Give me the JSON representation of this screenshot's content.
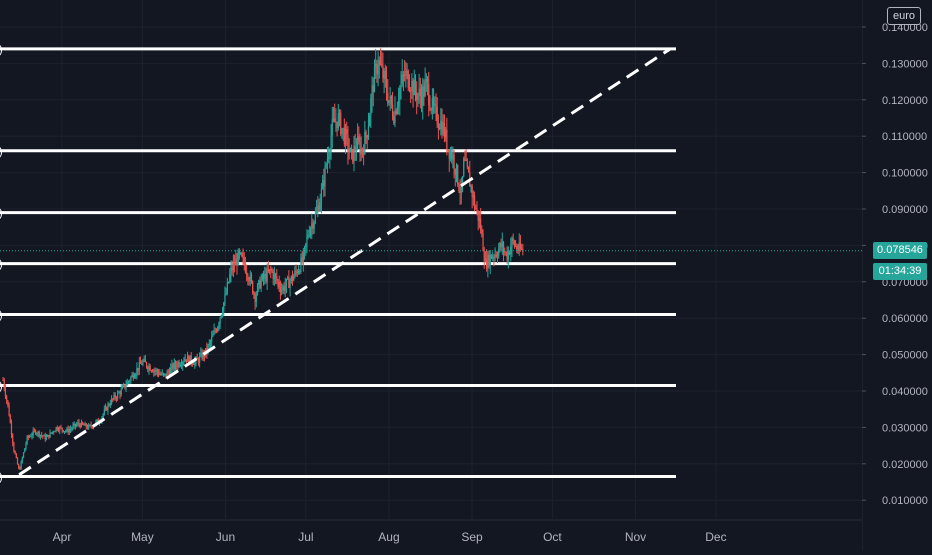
{
  "chart_data": {
    "type": "candlestick",
    "currency_label": "euro",
    "last_price": "0.078546",
    "countdown": "01:34:39",
    "colors": {
      "background": "#131722",
      "up": "#26a69a",
      "down": "#ef5350",
      "level_line": "#ffffff",
      "grid": "#1e222d",
      "price_line": "#26a69a"
    },
    "y_axis": {
      "ticks": [
        "0.140000",
        "0.130000",
        "0.120000",
        "0.110000",
        "0.100000",
        "0.090000",
        "0.080000",
        "0.070000",
        "0.060000",
        "0.050000",
        "0.040000",
        "0.030000",
        "0.020000",
        "0.010000"
      ],
      "tick_values": [
        0.14,
        0.13,
        0.12,
        0.11,
        0.1,
        0.09,
        0.08,
        0.07,
        0.06,
        0.05,
        0.04,
        0.03,
        0.02,
        0.01
      ],
      "ylim": [
        0.003,
        0.146
      ]
    },
    "x_axis": {
      "ticks": [
        "Apr",
        "May",
        "Jun",
        "Jul",
        "Aug",
        "Sep",
        "Oct",
        "Nov",
        "Dec"
      ],
      "tick_days": [
        0,
        30,
        61,
        91,
        122,
        153,
        183,
        214,
        244
      ]
    },
    "horizontal_levels": [
      0.134,
      0.106,
      0.089,
      0.075,
      0.061,
      0.0415,
      0.0165
    ],
    "trendline": {
      "from": {
        "day": -16,
        "value": 0.017
      },
      "to": {
        "day": 227,
        "value": 0.134
      },
      "style": "dashed"
    },
    "price_series": {
      "x_days": [
        -22,
        -20,
        -18,
        -16,
        -13,
        -10,
        -6,
        -2,
        2,
        6,
        10,
        14,
        18,
        22,
        26,
        30,
        34,
        38,
        42,
        46,
        50,
        54,
        58,
        61,
        63,
        66,
        68,
        70,
        72,
        74,
        78,
        82,
        86,
        90,
        92,
        95,
        97,
        99,
        101,
        103,
        106,
        108,
        110,
        112,
        114,
        116,
        118,
        120,
        122,
        124,
        126,
        128,
        130,
        132,
        134,
        136,
        138,
        140,
        142,
        144,
        146,
        148,
        149,
        150,
        152,
        154,
        156,
        158,
        160,
        162,
        164,
        166,
        168,
        170,
        172
      ],
      "values": [
        0.043,
        0.035,
        0.024,
        0.018,
        0.027,
        0.029,
        0.027,
        0.03,
        0.029,
        0.031,
        0.03,
        0.032,
        0.037,
        0.04,
        0.044,
        0.048,
        0.046,
        0.044,
        0.047,
        0.049,
        0.048,
        0.051,
        0.058,
        0.066,
        0.073,
        0.077,
        0.075,
        0.071,
        0.066,
        0.07,
        0.073,
        0.068,
        0.071,
        0.076,
        0.084,
        0.089,
        0.095,
        0.104,
        0.113,
        0.115,
        0.109,
        0.104,
        0.108,
        0.106,
        0.112,
        0.124,
        0.131,
        0.126,
        0.12,
        0.116,
        0.123,
        0.127,
        0.125,
        0.122,
        0.121,
        0.124,
        0.118,
        0.115,
        0.113,
        0.107,
        0.104,
        0.097,
        0.094,
        0.103,
        0.098,
        0.091,
        0.086,
        0.075,
        0.077,
        0.078,
        0.08,
        0.077,
        0.081,
        0.079,
        0.0785
      ]
    }
  }
}
